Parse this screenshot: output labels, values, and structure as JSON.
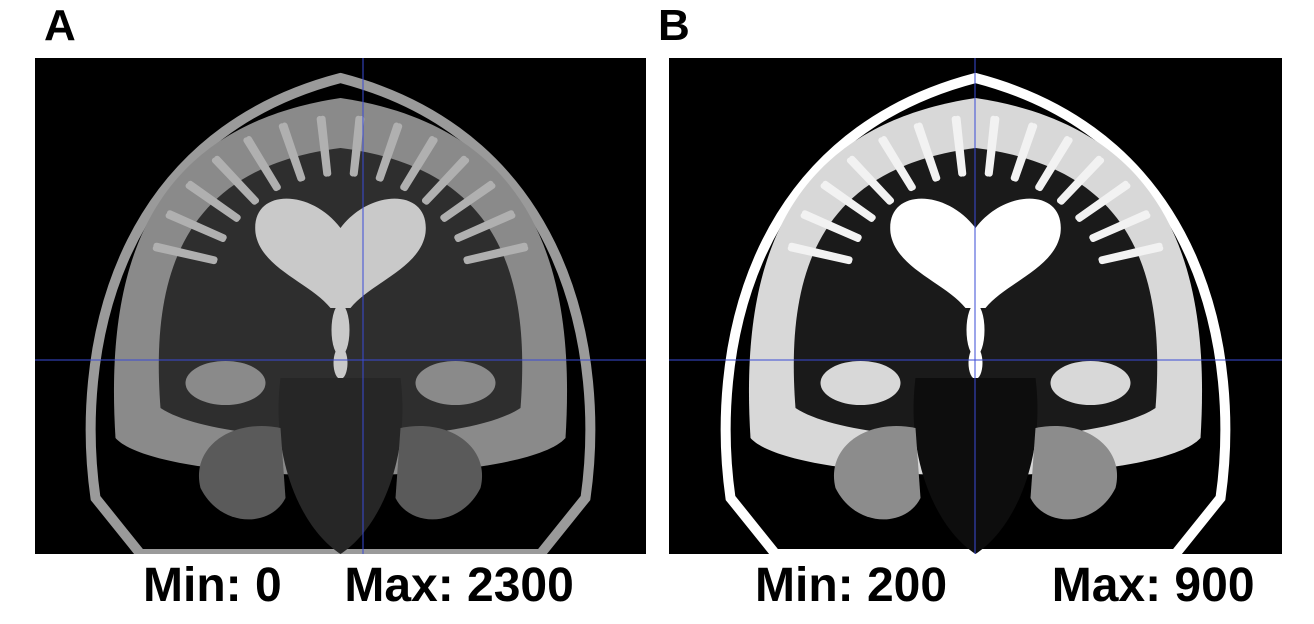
{
  "panels": [
    {
      "label": "A",
      "min_text": "Min: 0",
      "max_text": "Max: 2300",
      "window": {
        "min": 0,
        "max": 2300
      },
      "crosshair_color": "#3a4bd6"
    },
    {
      "label": "B",
      "min_text": "Min: 200",
      "max_text": "Max: 900",
      "window": {
        "min": 200,
        "max": 900
      },
      "crosshair_color": "#3a4bd6"
    }
  ],
  "image_description_icon": "coronal-brain-mri-slice"
}
